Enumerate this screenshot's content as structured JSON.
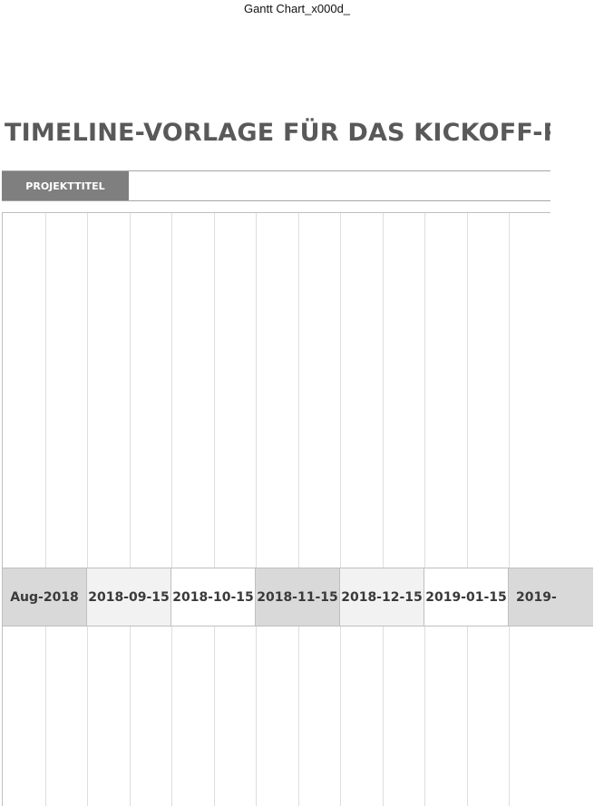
{
  "sheet": {
    "tab_label": "Gantt Chart_x000d_"
  },
  "document": {
    "title": "TIMELINE-VORLAGE FÜR DAS KICKOFF-PRO"
  },
  "project": {
    "label": "PROJEKTTITEL",
    "value": ""
  },
  "timeline": {
    "dates": [
      {
        "label": "Aug-2018",
        "shade": "#d9d9d9"
      },
      {
        "label": "2018-09-15",
        "shade": "#f2f2f2"
      },
      {
        "label": "2018-10-15",
        "shade": "#ffffff"
      },
      {
        "label": "2018-11-15",
        "shade": "#d9d9d9"
      },
      {
        "label": "2018-12-15",
        "shade": "#f2f2f2"
      },
      {
        "label": "2019-01-15",
        "shade": "#ffffff"
      },
      {
        "label": "2019-",
        "shade": "#d9d9d9"
      }
    ]
  },
  "colors": {
    "title": "#595959",
    "label_background": "#7f7f7f",
    "label_text": "#ffffff",
    "grid_line": "#dedede"
  }
}
